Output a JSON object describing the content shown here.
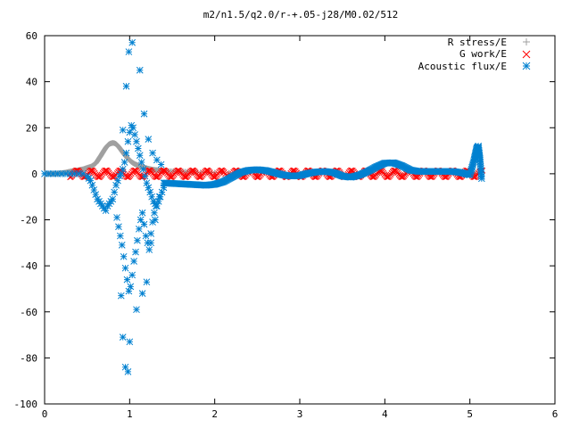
{
  "chart_data": {
    "type": "scatter",
    "title": "m2/n1.5/q2.0/r-+.05-j28/M0.02/512",
    "xlabel": "",
    "ylabel": "",
    "xlim": [
      0,
      6
    ],
    "ylim": [
      -100,
      60
    ],
    "xticks": [
      "0",
      "1",
      "2",
      "3",
      "4",
      "5",
      "6"
    ],
    "yticks": [
      "60",
      "40",
      "20",
      "0",
      "-20",
      "-40",
      "-60",
      "-80",
      "-100"
    ],
    "grid": false,
    "legend_position": "top-right",
    "series": [
      {
        "name": "R stress/E",
        "marker": "plus",
        "color": "#a0a0a0",
        "x": [
          0.0,
          0.05,
          0.1,
          0.15,
          0.2,
          0.25,
          0.3,
          0.35,
          0.4,
          0.45,
          0.5,
          0.55,
          0.6,
          0.62,
          0.64,
          0.66,
          0.68,
          0.7,
          0.72,
          0.74,
          0.76,
          0.78,
          0.8,
          0.82,
          0.84,
          0.86,
          0.88,
          0.9,
          0.92,
          0.94,
          0.96,
          0.98,
          1.0,
          1.02,
          1.04,
          1.06,
          1.08,
          1.1,
          1.12,
          1.14,
          1.16,
          1.18,
          1.2,
          1.22,
          1.25,
          1.3,
          1.35,
          1.4,
          1.5,
          1.6,
          1.7,
          1.8,
          2.0,
          2.5,
          3.0,
          3.5,
          4.0,
          4.5,
          5.0,
          5.1
        ],
        "y": [
          0,
          0,
          0,
          0.1,
          0.3,
          0.6,
          1,
          1.3,
          1.6,
          2,
          2.6,
          3.2,
          4.5,
          5.5,
          6.7,
          7.8,
          9,
          10.2,
          11.3,
          12.2,
          12.9,
          13.2,
          13.4,
          13.3,
          12.9,
          12.2,
          11.3,
          10.3,
          9.3,
          8.3,
          7.4,
          6.6,
          5.9,
          5.2,
          4.7,
          4.2,
          3.9,
          3.6,
          3.3,
          3.0,
          2.8,
          2.6,
          2.4,
          2.2,
          2.0,
          1.7,
          1.5,
          1.3,
          1.1,
          1.0,
          0.8,
          0.7,
          0.5,
          0.3,
          0.2,
          0.2,
          0.1,
          0.1,
          0.1,
          0.1
        ]
      },
      {
        "name": "G work/E",
        "marker": "cross",
        "color": "#ff0000",
        "x_range": [
          0.3,
          5.15
        ],
        "y_band": [
          -1.5,
          1.5
        ]
      },
      {
        "name": "Acoustic flux/E",
        "marker": "star",
        "color": "#0080d0",
        "x": [
          0.0,
          0.05,
          0.1,
          0.15,
          0.2,
          0.25,
          0.3,
          0.35,
          0.4,
          0.45,
          0.5,
          0.52,
          0.54,
          0.56,
          0.58,
          0.6,
          0.62,
          0.64,
          0.66,
          0.68,
          0.7,
          0.72,
          0.74,
          0.76,
          0.78,
          0.8,
          0.82,
          0.84,
          0.86,
          0.88,
          0.9,
          0.92,
          0.94,
          0.96,
          0.98,
          1.0,
          1.02,
          1.04,
          1.06,
          1.08,
          1.1,
          1.12,
          1.14,
          1.16,
          1.18,
          1.2,
          1.22,
          1.24,
          1.26,
          1.28,
          1.3,
          1.32,
          1.34,
          1.36,
          1.38,
          1.4,
          0.85,
          0.87,
          0.89,
          0.91,
          0.93,
          0.95,
          0.97,
          0.99,
          1.01,
          1.03,
          1.05,
          1.07,
          1.09,
          1.11,
          1.13,
          1.15,
          1.17,
          1.19,
          1.21,
          1.23,
          1.25,
          1.27,
          1.29,
          1.31,
          0.9,
          0.92,
          0.95,
          0.98,
          1.0,
          1.08,
          1.15,
          1.2,
          1.25,
          1.3,
          1.35,
          0.92,
          0.96,
          0.99,
          1.03,
          1.12,
          1.17,
          1.22,
          1.27,
          1.32,
          1.37
        ],
        "y": [
          0,
          0,
          0,
          0,
          0,
          0,
          0,
          0,
          0,
          0,
          -1,
          -2,
          -3,
          -5,
          -7,
          -9,
          -11,
          -12,
          -13,
          -14,
          -15,
          -16,
          -14,
          -13,
          -12,
          -11,
          -8,
          -5,
          -3,
          -1,
          0,
          2,
          5,
          9,
          14,
          18,
          21,
          20,
          17,
          14,
          11,
          8,
          5,
          2,
          -1,
          -4,
          -6,
          -8,
          -10,
          -12,
          -13,
          -14,
          -12,
          -10,
          -8,
          -6,
          -19,
          -23,
          -27,
          -31,
          -36,
          -41,
          -46,
          -51,
          -49,
          -44,
          -38,
          -34,
          -29,
          -24,
          -20,
          -17,
          -22,
          -27,
          -30,
          -33,
          -26,
          -21,
          -17,
          -14,
          -53,
          -71,
          -84,
          -86,
          -73,
          -59,
          -52,
          -47,
          -30,
          -20,
          -10,
          19,
          38,
          53,
          57,
          45,
          26,
          15,
          9,
          6,
          4
        ]
      }
    ],
    "acoustic_curve": {
      "x": [
        1.4,
        1.5,
        1.6,
        1.7,
        1.8,
        1.9,
        2.0,
        2.1,
        2.2,
        2.3,
        2.4,
        2.5,
        2.6,
        2.7,
        2.8,
        2.9,
        3.0,
        3.1,
        3.2,
        3.3,
        3.4,
        3.5,
        3.6,
        3.7,
        3.8,
        3.9,
        4.0,
        4.1,
        4.2,
        4.3,
        4.4,
        4.5,
        4.6,
        4.7,
        4.8,
        4.9,
        5.0,
        5.05,
        5.08,
        5.1,
        5.12,
        5.14
      ],
      "y": [
        -4,
        -4.2,
        -4.4,
        -4.6,
        -4.8,
        -5,
        -4.6,
        -3.5,
        -1.5,
        0.5,
        1.5,
        1.8,
        1.4,
        0.5,
        -0.5,
        -1.0,
        -0.8,
        0.2,
        0.8,
        1.0,
        0.5,
        -1.0,
        -1.5,
        -0.6,
        1.0,
        3.0,
        4.6,
        4.8,
        3.5,
        1.6,
        1.0,
        1.0,
        1.0,
        1.0,
        1.0,
        0.5,
        -0.5,
        6.0,
        11.0,
        12.0,
        6.0,
        -3.0
      ]
    },
    "legend_labels": [
      "R stress/E",
      "G work/E",
      "Acoustic flux/E"
    ]
  }
}
